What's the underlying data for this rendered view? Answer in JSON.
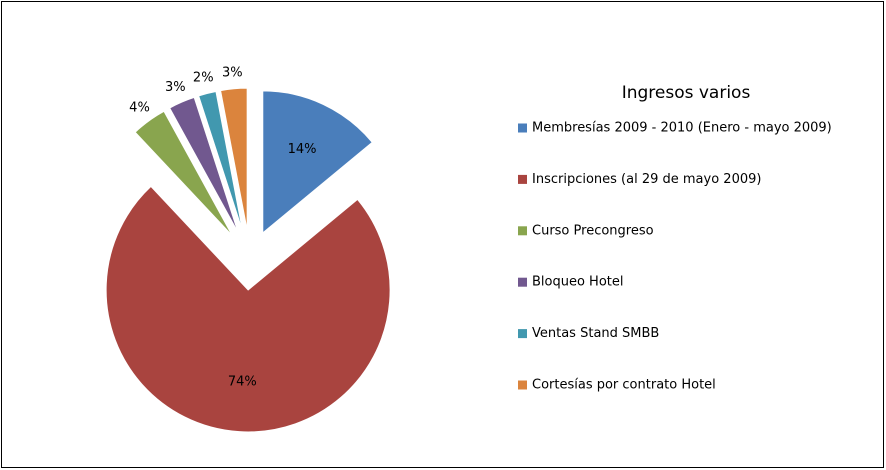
{
  "chart_data": {
    "type": "pie",
    "title": "Ingresos varios",
    "categories": [
      "Membresías 2009 - 2010 (Enero - mayo 2009)",
      "Inscripciones (al 29 de mayo 2009)",
      "Curso Precongreso",
      "Bloqueo Hotel",
      "Ventas Stand SMBB",
      "Cortesías por contrato Hotel"
    ],
    "values": [
      14,
      74,
      4,
      3,
      2,
      3
    ],
    "colors": [
      "#4a7ebb",
      "#a9443f",
      "#89a54e",
      "#71588f",
      "#4198af",
      "#db843d"
    ],
    "legend": "right"
  }
}
